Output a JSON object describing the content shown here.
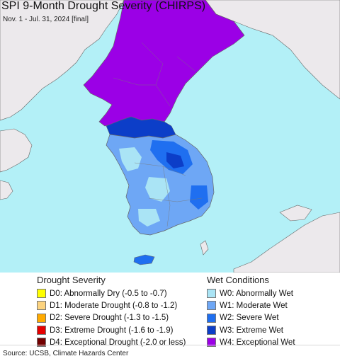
{
  "title": "SPI 9-Month Drought Severity (CHIRPS)",
  "subtitle": "Nov. 1 - Jul. 31, 2024 [final]",
  "colors": {
    "ocean": "#b3f0f7",
    "land_other": "#ece9ec",
    "border": "#666666"
  },
  "legend_drought": {
    "title": "Drought Severity",
    "items": [
      {
        "label": "D0: Abnormally Dry (-0.5 to -0.7)",
        "color": "#ffff00"
      },
      {
        "label": "D1: Moderate Drought (-0.8 to -1.2)",
        "color": "#fcd37f"
      },
      {
        "label": "D2: Severe Drought (-1.3 to -1.5)",
        "color": "#ffaa00"
      },
      {
        "label": "D3: Extreme Drought (-1.6 to -1.9)",
        "color": "#e60000"
      },
      {
        "label": "D4: Exceptional Drought (-2.0 or less)",
        "color": "#730000"
      }
    ]
  },
  "legend_wet": {
    "title": "Wet Conditions",
    "items": [
      {
        "label": "W0: Abnormally Wet",
        "color": "#aae4f5"
      },
      {
        "label": "W1: Moderate Wet",
        "color": "#6ea7f5"
      },
      {
        "label": "W2: Severe Wet",
        "color": "#1f6ff0"
      },
      {
        "label": "W3: Extreme Wet",
        "color": "#0c3ec8"
      },
      {
        "label": "W4: Exceptional Wet",
        "color": "#9b00e6"
      }
    ]
  },
  "source": "Source: UCSB, Climate Hazards Center"
}
